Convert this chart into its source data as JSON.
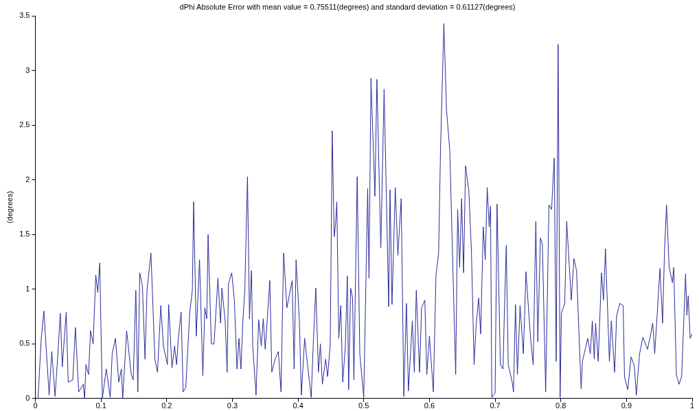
{
  "chart_data": {
    "type": "line",
    "title": "dPhi Absolute Error with mean value = 0.75511(degrees) and standard deviation = 0.61127(degrees)",
    "ylabel": "(degrees)",
    "xlim": [
      0,
      1
    ],
    "ylim": [
      0,
      3.5
    ],
    "xticks": [
      0,
      0.1,
      0.2,
      0.3,
      0.4,
      0.5,
      0.6,
      0.7,
      0.8,
      0.9,
      1
    ],
    "yticks": [
      0,
      0.5,
      1,
      1.5,
      2,
      2.5,
      3,
      3.5
    ],
    "grid": false,
    "legend": false,
    "marker": "none",
    "line_style": "solid",
    "series": [
      {
        "color": "#2a2a9a",
        "x": [
          0.004,
          0.006,
          0.009,
          0.013,
          0.019,
          0.021,
          0.025,
          0.03,
          0.034,
          0.038,
          0.041,
          0.047,
          0.05,
          0.057,
          0.061,
          0.066,
          0.073,
          0.075,
          0.077,
          0.081,
          0.084,
          0.088,
          0.092,
          0.095,
          0.098,
          0.102,
          0.108,
          0.114,
          0.117,
          0.122,
          0.127,
          0.131,
          0.133,
          0.139,
          0.146,
          0.149,
          0.153,
          0.156,
          0.159,
          0.163,
          0.167,
          0.17,
          0.176,
          0.182,
          0.186,
          0.191,
          0.195,
          0.201,
          0.203,
          0.208,
          0.212,
          0.215,
          0.218,
          0.222,
          0.225,
          0.229,
          0.235,
          0.239,
          0.241,
          0.245,
          0.25,
          0.255,
          0.258,
          0.261,
          0.263,
          0.268,
          0.272,
          0.278,
          0.282,
          0.284,
          0.289,
          0.292,
          0.294,
          0.299,
          0.303,
          0.307,
          0.31,
          0.313,
          0.316,
          0.319,
          0.323,
          0.326,
          0.329,
          0.331,
          0.336,
          0.34,
          0.344,
          0.347,
          0.35,
          0.357,
          0.36,
          0.365,
          0.37,
          0.374,
          0.378,
          0.383,
          0.391,
          0.394,
          0.397,
          0.402,
          0.405,
          0.41,
          0.42,
          0.423,
          0.427,
          0.431,
          0.434,
          0.437,
          0.442,
          0.445,
          0.449,
          0.452,
          0.455,
          0.457,
          0.459,
          0.462,
          0.465,
          0.468,
          0.472,
          0.475,
          0.477,
          0.48,
          0.483,
          0.485,
          0.49,
          0.494,
          0.5,
          0.506,
          0.508,
          0.511,
          0.515,
          0.517,
          0.52,
          0.526,
          0.531,
          0.538,
          0.54,
          0.543,
          0.548,
          0.552,
          0.557,
          0.561,
          0.565,
          0.568,
          0.574,
          0.577,
          0.58,
          0.585,
          0.588,
          0.593,
          0.596,
          0.6,
          0.606,
          0.61,
          0.614,
          0.617,
          0.622,
          0.626,
          0.631,
          0.64,
          0.643,
          0.646,
          0.649,
          0.652,
          0.655,
          0.66,
          0.664,
          0.668,
          0.671,
          0.675,
          0.678,
          0.682,
          0.685,
          0.688,
          0.691,
          0.693,
          0.695,
          0.7,
          0.703,
          0.708,
          0.712,
          0.714,
          0.717,
          0.72,
          0.726,
          0.728,
          0.731,
          0.734,
          0.738,
          0.743,
          0.747,
          0.754,
          0.758,
          0.762,
          0.765,
          0.769,
          0.772,
          0.777,
          0.782,
          0.786,
          0.79,
          0.793,
          0.796,
          0.799,
          0.801,
          0.806,
          0.809,
          0.816,
          0.82,
          0.824,
          0.831,
          0.833,
          0.841,
          0.845,
          0.848,
          0.851,
          0.853,
          0.857,
          0.862,
          0.865,
          0.868,
          0.874,
          0.877,
          0.882,
          0.885,
          0.89,
          0.895,
          0.897,
          0.902,
          0.907,
          0.912,
          0.915,
          0.92,
          0.925,
          0.932,
          0.936,
          0.94,
          0.943,
          0.946,
          0.951,
          0.955,
          0.958,
          0.961,
          0.965,
          0.97,
          0.972,
          0.976,
          0.98,
          0.984,
          0.99,
          0.992,
          0.994,
          0.997,
          1
        ],
        "values": [
          0,
          0.22,
          0.55,
          0.8,
          0.22,
          0.03,
          0.43,
          0.02,
          0.38,
          0.78,
          0.29,
          0.79,
          0.15,
          0.17,
          0.65,
          0.06,
          0.13,
          0,
          0.31,
          0.22,
          0.62,
          0.5,
          1.13,
          0.97,
          1.24,
          0,
          0.27,
          0.01,
          0.41,
          0.55,
          0.15,
          0.27,
          0,
          0.62,
          0.22,
          0.17,
          0.99,
          0.06,
          1.15,
          1.03,
          0.36,
          0.99,
          1.33,
          0.36,
          0.24,
          0.85,
          0.48,
          0.31,
          0.86,
          0.28,
          0.48,
          0.31,
          0.57,
          0.79,
          0.06,
          0.1,
          0.78,
          0.99,
          1.8,
          0.57,
          1.27,
          0.21,
          0.83,
          0.73,
          1.5,
          0.5,
          0.5,
          1.1,
          0.69,
          1.01,
          0.71,
          0.24,
          1.05,
          1.15,
          0.9,
          0.27,
          0.55,
          0.27,
          0.71,
          1.01,
          2.03,
          0.73,
          1.17,
          0.48,
          0.03,
          0.72,
          0.48,
          0.73,
          0.45,
          1.08,
          0.24,
          0.36,
          0.43,
          0.06,
          1.33,
          0.83,
          1.08,
          0.27,
          1.27,
          0.71,
          0.03,
          0.55,
          0.01,
          0.48,
          1.01,
          0.24,
          0.5,
          0.13,
          0.36,
          0.2,
          0.5,
          2.45,
          1.48,
          1.59,
          1.8,
          0.55,
          0.85,
          0.15,
          0.48,
          1.12,
          0.08,
          1.01,
          0.92,
          0.17,
          2.03,
          0.41,
          0.01,
          1.92,
          1.1,
          2.93,
          2.22,
          1.85,
          2.92,
          1.38,
          2.83,
          0.84,
          1.91,
          0.86,
          1.93,
          1.31,
          1.83,
          0.02,
          0.87,
          0.07,
          0.71,
          0.24,
          0.99,
          0.24,
          0.83,
          0.9,
          0.22,
          0.57,
          0.06,
          1.13,
          1.33,
          2.31,
          3.43,
          2.64,
          2.27,
          0.22,
          1.73,
          1.2,
          1.83,
          1.15,
          2.13,
          1.9,
          1.34,
          0.31,
          0.66,
          0.92,
          0.59,
          1.57,
          1.27,
          1.93,
          1.57,
          1.76,
          0.01,
          0.05,
          1.78,
          0.31,
          0.27,
          0.76,
          1.4,
          0.31,
          0.15,
          0.06,
          0.86,
          0.22,
          0.85,
          0.41,
          1.16,
          0.55,
          0.31,
          1.62,
          0.52,
          1.47,
          1.41,
          0.06,
          1.77,
          1.73,
          2.2,
          0.34,
          3.24,
          0.01,
          0.78,
          0.87,
          1.62,
          0.9,
          1.28,
          1.17,
          0.09,
          0.34,
          0.55,
          0.41,
          0.71,
          0.36,
          0.69,
          0.34,
          1.15,
          0.9,
          1.37,
          0.34,
          0.71,
          0.24,
          0.76,
          0.87,
          0.85,
          0.2,
          0.08,
          0.38,
          0.3,
          0.03,
          0.41,
          0.56,
          0.45,
          0.56,
          0.69,
          0.41,
          0.69,
          1.19,
          0.69,
          1.36,
          1.77,
          1.2,
          1.06,
          1.2,
          0.22,
          0.13,
          0.2,
          1.14,
          0.76,
          0.94,
          0.55,
          0.59
        ]
      }
    ]
  }
}
